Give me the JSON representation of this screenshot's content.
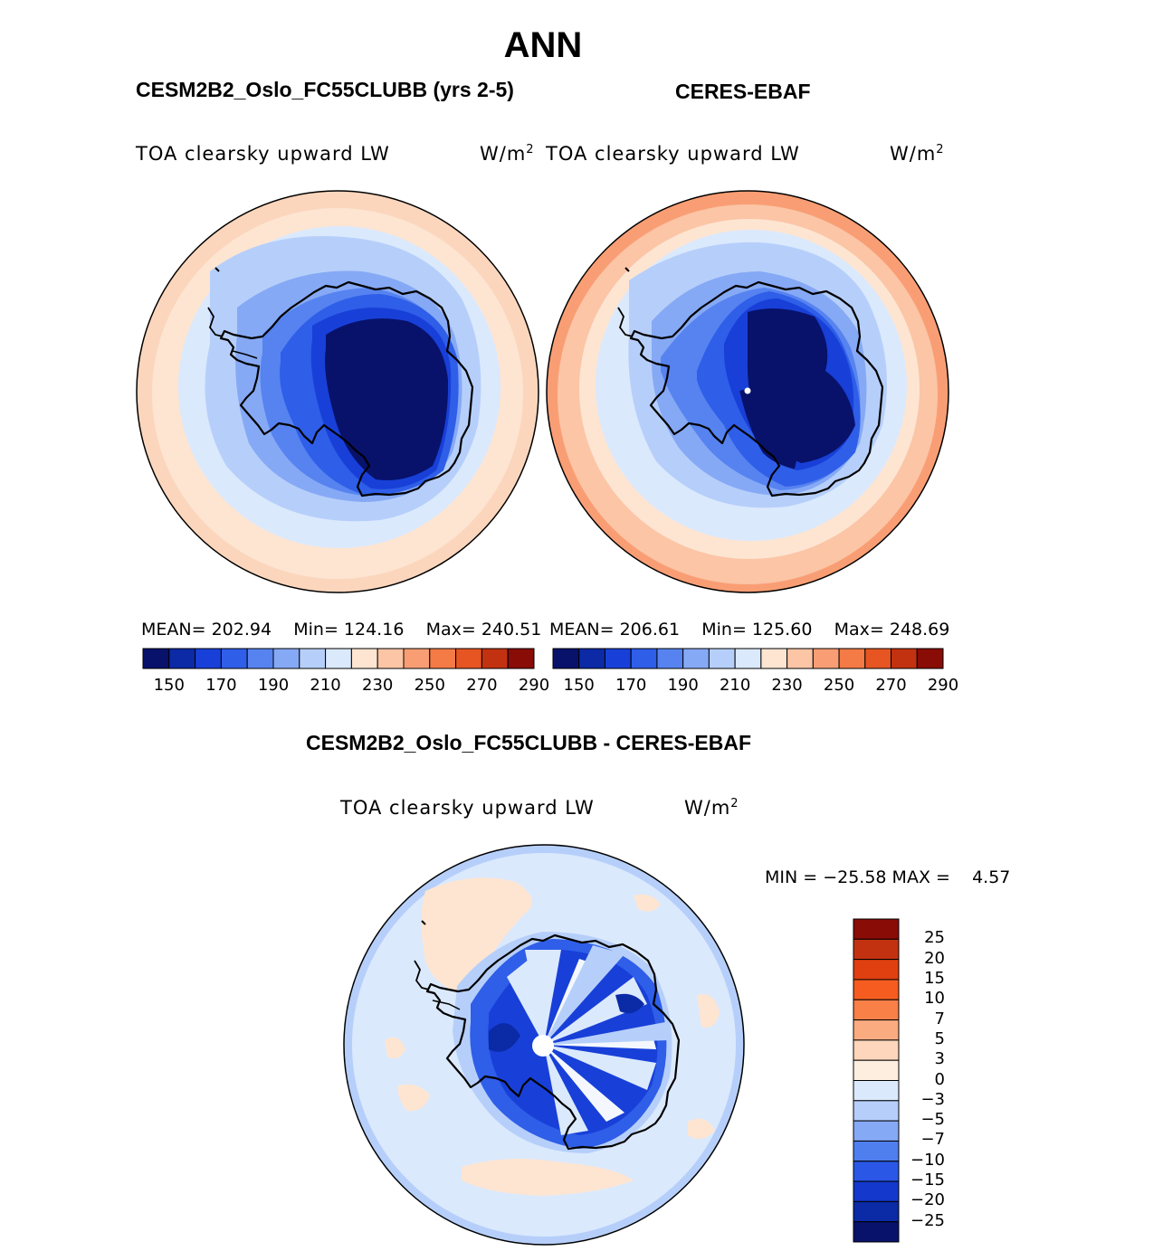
{
  "season": "ANN",
  "panels": [
    {
      "source": "CESM2B2_Oslo_FC55CLUBB (yrs 2-5)",
      "variable": "TOA clearsky upward LW",
      "unit_base": "W/m",
      "unit_exp": "2",
      "stats": {
        "mean_label": "MEAN=",
        "mean": "202.94",
        "min_label": "Min=",
        "min": "124.16",
        "max_label": "Max=",
        "max": "240.51"
      }
    },
    {
      "source": "CERES-EBAF",
      "variable": "TOA clearsky upward LW",
      "unit_base": "W/m",
      "unit_exp": "2",
      "stats": {
        "mean_label": "MEAN=",
        "mean": "206.61",
        "min_label": "Min=",
        "min": "125.60",
        "max_label": "Max=",
        "max": "248.69"
      }
    }
  ],
  "abs_colorbar": {
    "tick_labels": [
      "150",
      "170",
      "190",
      "210",
      "230",
      "250",
      "270",
      "290"
    ],
    "colors": [
      "#08126b",
      "#0c2aa6",
      "#1840d8",
      "#2f5ee8",
      "#5683f0",
      "#86a9f5",
      "#b6cffa",
      "#dbe9fd",
      "#fde5d2",
      "#fbc5a6",
      "#f99e74",
      "#f47a46",
      "#e75522",
      "#c33210",
      "#8a0c06"
    ]
  },
  "difference": {
    "title": "CESM2B2_Oslo_FC55CLUBB - CERES-EBAF",
    "variable": "TOA clearsky upward LW",
    "unit_base": "W/m",
    "unit_exp": "2",
    "minmax": "MIN = −25.58 MAX =    4.57",
    "colorbar": {
      "tick_labels": [
        "25",
        "20",
        "15",
        "10",
        "7",
        "5",
        "3",
        "0",
        "−3",
        "−5",
        "−7",
        "−10",
        "−15",
        "−20",
        "−25"
      ],
      "colors": [
        "#8a0c06",
        "#c33210",
        "#e0400f",
        "#f65c1f",
        "#f98047",
        "#fbab80",
        "#fdd6bb",
        "#fdeee0",
        "#dbe9fd",
        "#b6cffa",
        "#86a9f5",
        "#4f7eee",
        "#2a57e6",
        "#1438cc",
        "#0a2aa6",
        "#08126b"
      ]
    }
  },
  "chart_data": [
    {
      "type": "heatmap",
      "title": "CESM2B2_Oslo_FC55CLUBB (yrs 2-5)",
      "projection": "south polar stereographic",
      "variable": "TOA clearsky upward LW",
      "units": "W/m2",
      "contour_levels": [
        150,
        160,
        170,
        180,
        190,
        200,
        210,
        220,
        230,
        240,
        250,
        260,
        270,
        280,
        290
      ],
      "mean": 202.94,
      "min": 124.16,
      "max": 240.51
    },
    {
      "type": "heatmap",
      "title": "CERES-EBAF",
      "projection": "south polar stereographic",
      "variable": "TOA clearsky upward LW",
      "units": "W/m2",
      "contour_levels": [
        150,
        160,
        170,
        180,
        190,
        200,
        210,
        220,
        230,
        240,
        250,
        260,
        270,
        280,
        290
      ],
      "mean": 206.61,
      "min": 125.6,
      "max": 248.69
    },
    {
      "type": "heatmap",
      "title": "CESM2B2_Oslo_FC55CLUBB - CERES-EBAF",
      "projection": "south polar stereographic",
      "variable": "TOA clearsky upward LW",
      "units": "W/m2",
      "contour_levels": [
        -25,
        -20,
        -15,
        -10,
        -7,
        -5,
        -3,
        0,
        3,
        5,
        7,
        10,
        15,
        20,
        25
      ],
      "min": -25.58,
      "max": 4.57
    }
  ]
}
